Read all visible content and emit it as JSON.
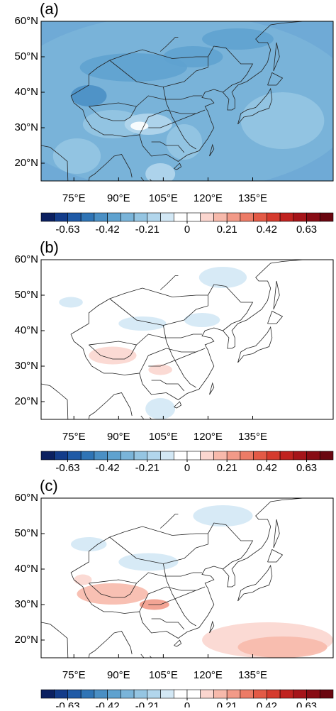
{
  "panels": [
    {
      "label": "(a)"
    },
    {
      "label": "(b)"
    },
    {
      "label": "(c)"
    }
  ],
  "map": {
    "xlim": [
      64,
      162
    ],
    "ylim": [
      15,
      60
    ],
    "xticks": [
      {
        "value": 75,
        "label": "75°E"
      },
      {
        "value": 90,
        "label": "90°E"
      },
      {
        "value": 105,
        "label": "105°E"
      },
      {
        "value": 120,
        "label": "120°E"
      },
      {
        "value": 135,
        "label": "135°E"
      }
    ],
    "yticks": [
      {
        "value": 20,
        "label": "20°N"
      },
      {
        "value": 30,
        "label": "30°N"
      },
      {
        "value": 40,
        "label": "40°N"
      },
      {
        "value": 50,
        "label": "50°N"
      },
      {
        "value": 60,
        "label": "60°N"
      }
    ]
  },
  "colorbar": {
    "lim": [
      -0.77,
      0.77
    ],
    "ticks": [
      -0.63,
      -0.42,
      -0.21,
      0,
      0.21,
      0.42,
      0.63
    ],
    "colors": [
      "#0b2060",
      "#133c8a",
      "#1f5aa6",
      "#2f74b5",
      "#4a8fc4",
      "#5fa2cf",
      "#7ab4d9",
      "#95c5e2",
      "#b2d6ec",
      "#d3e8f5",
      "#ffffff",
      "#ffffff",
      "#fbd6cf",
      "#f7b9ab",
      "#f29a88",
      "#ec7b66",
      "#e35a46",
      "#d53b2e",
      "#c0221f",
      "#a51419",
      "#880c14",
      "#6a0610"
    ]
  }
}
